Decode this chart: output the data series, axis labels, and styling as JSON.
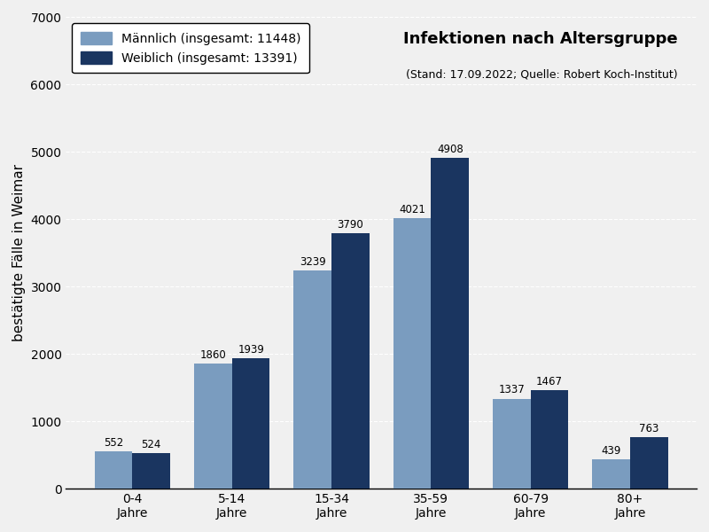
{
  "categories": [
    "0-4\nJahre",
    "5-14\nJahre",
    "15-34\nJahre",
    "35-59\nJahre",
    "60-79\nJahre",
    "80+\nJahre"
  ],
  "maennlich": [
    552,
    1860,
    3239,
    4021,
    1337,
    439
  ],
  "weiblich": [
    524,
    1939,
    3790,
    4908,
    1467,
    763
  ],
  "color_maennlich": "#7a9cbf",
  "color_weiblich": "#1a3560",
  "title_main": "Infektionen nach Altersgruppe",
  "title_sub": "(Stand: 17.09.2022; Quelle: Robert Koch-Institut)",
  "ylabel": "bestätigte Fälle in Weimar",
  "legend_maennlich": "Männlich",
  "legend_weiblich": "Weiblich",
  "total_maennlich": 11448,
  "total_weiblich": 13391,
  "ylim": [
    0,
    7000
  ],
  "yticks": [
    0,
    1000,
    2000,
    3000,
    4000,
    5000,
    6000,
    7000
  ],
  "background_color": "#f0f0f0",
  "bar_label_fontsize": 8.5,
  "title_fontsize": 13,
  "subtitle_fontsize": 9,
  "legend_fontsize": 10,
  "axis_label_fontsize": 11,
  "tick_fontsize": 10
}
